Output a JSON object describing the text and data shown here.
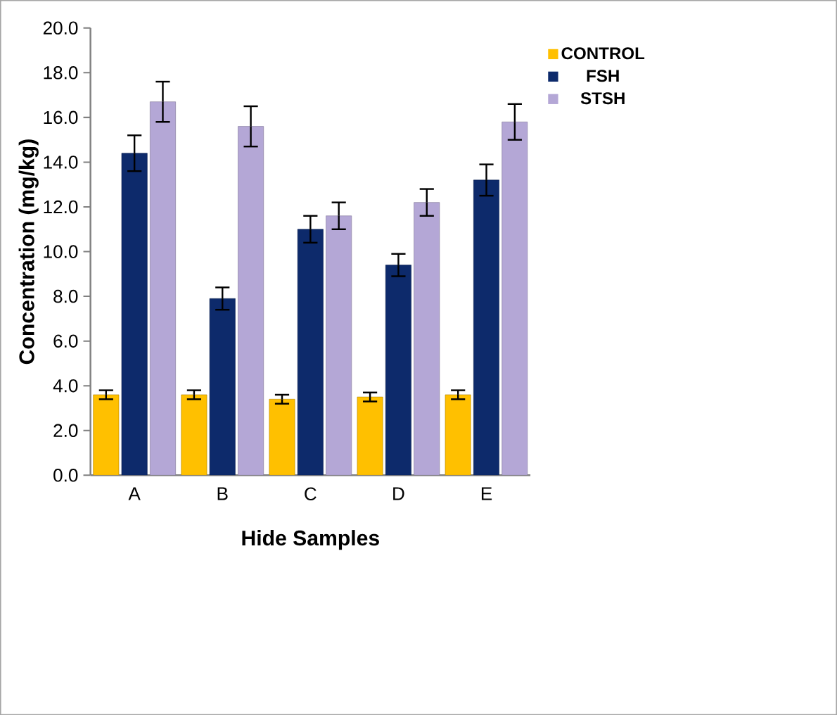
{
  "chart_data": {
    "type": "bar",
    "xlabel": "Hide Samples",
    "ylabel": "Concentration (mg/kg)",
    "categories": [
      "A",
      "B",
      "C",
      "D",
      "E"
    ],
    "series": [
      {
        "name": "CONTROL",
        "color": "#ffc000",
        "values": [
          3.6,
          3.6,
          3.4,
          3.5,
          3.6
        ],
        "errors": [
          0.2,
          0.2,
          0.2,
          0.2,
          0.2
        ]
      },
      {
        "name": "FSH",
        "color": "#0d2a6b",
        "values": [
          14.4,
          7.9,
          11.0,
          9.4,
          13.2
        ],
        "errors": [
          0.8,
          0.5,
          0.6,
          0.5,
          0.7
        ]
      },
      {
        "name": "STSH",
        "color": "#b4a7d6",
        "values": [
          16.7,
          15.6,
          11.6,
          12.2,
          15.8
        ],
        "errors": [
          0.9,
          0.9,
          0.6,
          0.6,
          0.8
        ]
      }
    ],
    "ylim": [
      0,
      20
    ],
    "yticks": [
      {
        "value": 0,
        "label": "0.0"
      },
      {
        "value": 2,
        "label": "2.0"
      },
      {
        "value": 4,
        "label": "4.0"
      },
      {
        "value": 6,
        "label": "6.0"
      },
      {
        "value": 8,
        "label": "8.0"
      },
      {
        "value": 10,
        "label": "10.0"
      },
      {
        "value": 12,
        "label": "12.0"
      },
      {
        "value": 14,
        "label": "14.0"
      },
      {
        "value": 16,
        "label": "16.0"
      },
      {
        "value": 18,
        "label": "18.0"
      },
      {
        "value": 20,
        "label": "20.0"
      }
    ],
    "grid": false,
    "legend": "right"
  }
}
